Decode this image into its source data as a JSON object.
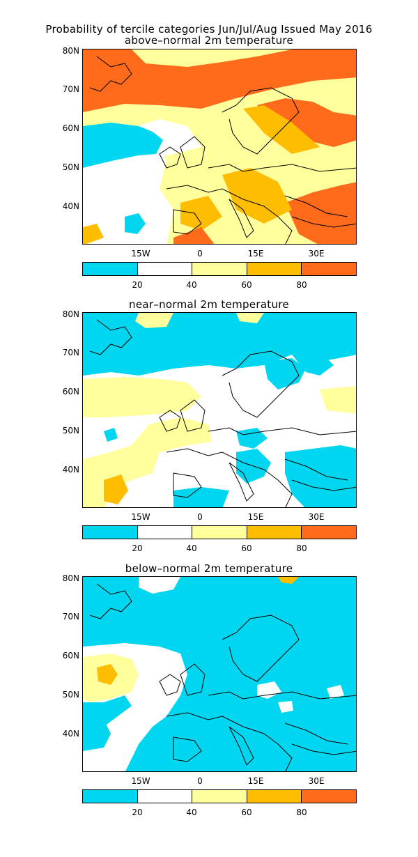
{
  "figure": {
    "title": "Probability of tercile categories Jun/Jul/Aug Issued May 2016"
  },
  "colors": {
    "c0_20": "#00d6ef",
    "c20_40": "#ffffff",
    "c40_60": "#ffff9c",
    "c60_80": "#ffbd00",
    "c80_100": "#ff6b1a",
    "coast": "#000000"
  },
  "axes": {
    "lat_ticks": [
      "80N",
      "70N",
      "60N",
      "50N",
      "40N"
    ],
    "lon_ticks": [
      "15W",
      "0",
      "15E",
      "30E"
    ]
  },
  "colorbar": {
    "ticks": [
      "20",
      "40",
      "60",
      "80"
    ]
  },
  "panels": [
    {
      "subtitle": "above–normal 2m temperature",
      "dominant": "c40_60"
    },
    {
      "subtitle": "near–normal 2m temperature",
      "dominant": "c20_40"
    },
    {
      "subtitle": "below–normal 2m temperature",
      "dominant": "c0_20"
    }
  ]
}
